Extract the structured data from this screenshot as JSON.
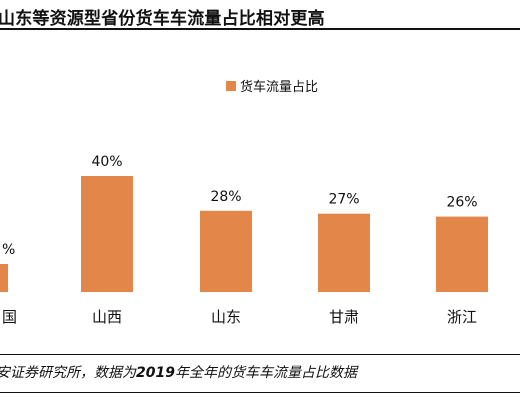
{
  "title": "山东等资源型省份货车车流量占比相对更高",
  "chart_data": {
    "type": "bar",
    "categories": [
      "国",
      "山西",
      "山东",
      "甘肃",
      "浙江"
    ],
    "values": [
      null,
      40,
      28,
      27,
      26
    ],
    "value_labels": [
      "%",
      "40%",
      "28%",
      "27%",
      "26%"
    ],
    "series": [
      {
        "name": "货车流量占比",
        "values": [
          null,
          40,
          28,
          27,
          26
        ]
      }
    ],
    "xlabel": "",
    "ylabel": "",
    "ylim": [
      0,
      45
    ],
    "grid": false,
    "legend": "top-center",
    "bar_color": "#E2864A"
  },
  "footer": {
    "prefix": "安证券研究所，数据为",
    "year": "2019",
    "suffix": "年全年的货车车流量占比数据"
  }
}
